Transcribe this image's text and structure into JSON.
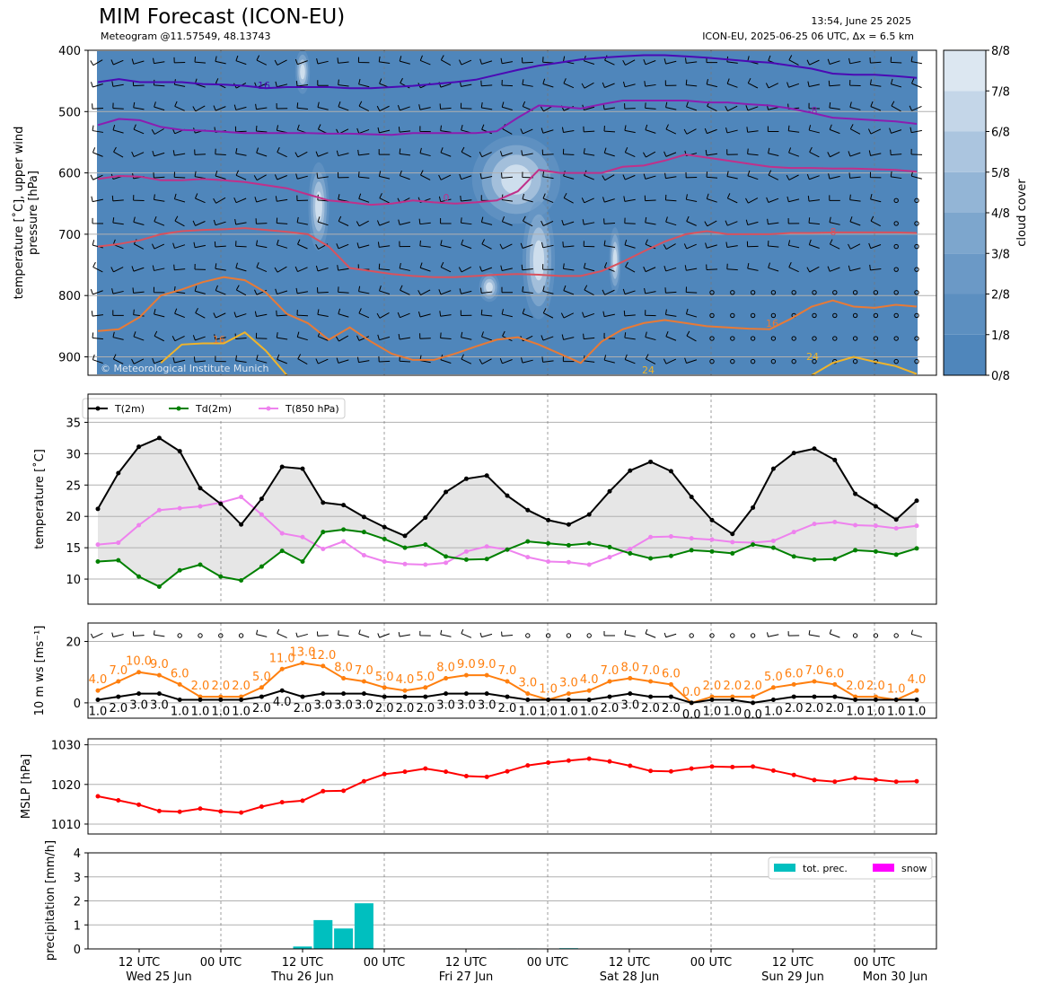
{
  "header": {
    "title": "MIM Forecast (ICON-EU)",
    "subtitle": "Meteogram @11.57549, 48.13743",
    "right_line1": "13:54, June 25 2025",
    "right_line2": "ICON-EU, 2025-06-25 06 UTC, Δx = 6.5 km",
    "copyright": "© Meteorological Institute Munich"
  },
  "x_axis": {
    "tick_labels": [
      "12 UTC",
      "00 UTC",
      "12 UTC",
      "00 UTC",
      "12 UTC",
      "00 UTC",
      "12 UTC",
      "00 UTC",
      "12 UTC",
      "00 UTC"
    ],
    "day_labels": [
      "Wed 25 Jun",
      "Thu 26 Jun",
      "Fri 27 Jun",
      "Sat 28 Jun",
      "Sun 29 Jun",
      "Mon 30 Jun"
    ]
  },
  "chart_data": [
    {
      "type": "heatmap",
      "panel": "upper-air",
      "ylabel": "temperature [˚C], upper wind\npressure [hPa]",
      "yticks": [
        400,
        500,
        600,
        700,
        800,
        900
      ],
      "ylim": [
        930,
        400
      ],
      "colorbar": {
        "label": "cloud cover",
        "ticks": [
          "0/8",
          "1/8",
          "2/8",
          "3/8",
          "4/8",
          "5/8",
          "6/8",
          "7/8",
          "8/8"
        ],
        "colors": [
          "#4f86bb",
          "#5c8fc0",
          "#6b99c6",
          "#7da6cd",
          "#93b5d6",
          "#abc5df",
          "#c4d6e8",
          "#dce7f1",
          "#f3f7fb"
        ]
      },
      "isotherm_labels": [
        "-16",
        "-8",
        "0",
        "8",
        "16",
        "24",
        "16",
        "24"
      ],
      "isotherms": [
        {
          "temp": -16,
          "color": "#4b0ab4",
          "p": [
            452,
            447,
            452,
            452,
            452,
            455,
            456,
            458,
            462,
            460,
            460,
            460,
            462,
            462,
            460,
            458,
            455,
            452,
            448,
            440,
            432,
            425,
            420,
            415,
            412,
            410,
            408,
            408,
            410,
            412,
            415,
            418,
            420,
            425,
            430,
            438,
            440,
            440,
            442,
            445
          ]
        },
        {
          "temp": -8,
          "color": "#8b1db0",
          "p": [
            522,
            512,
            514,
            525,
            530,
            531,
            533,
            535,
            535,
            535,
            535,
            536,
            536,
            537,
            538,
            535,
            535,
            535,
            535,
            532,
            510,
            490,
            492,
            495,
            488,
            482,
            482,
            482,
            482,
            485,
            485,
            488,
            490,
            495,
            502,
            510,
            512,
            514,
            516,
            520
          ]
        },
        {
          "temp": 0,
          "color": "#c0308a",
          "p": [
            610,
            605,
            606,
            612,
            612,
            610,
            612,
            615,
            620,
            625,
            635,
            645,
            648,
            652,
            650,
            645,
            648,
            650,
            648,
            645,
            630,
            595,
            600,
            600,
            600,
            590,
            588,
            580,
            570,
            575,
            580,
            585,
            590,
            592,
            592,
            593,
            593,
            594,
            595,
            598
          ]
        },
        {
          "temp": 8,
          "color": "#d8525e",
          "p": [
            720,
            716,
            710,
            700,
            695,
            693,
            692,
            690,
            693,
            696,
            700,
            720,
            755,
            760,
            765,
            768,
            770,
            770,
            768,
            766,
            765,
            766,
            768,
            768,
            760,
            745,
            728,
            712,
            700,
            695,
            700,
            700,
            700,
            698,
            698,
            697,
            697,
            697,
            697,
            698
          ]
        },
        {
          "temp": 16,
          "color": "#e87a36",
          "p": [
            858,
            855,
            835,
            800,
            790,
            778,
            770,
            775,
            795,
            830,
            845,
            872,
            852,
            875,
            895,
            905,
            905,
            895,
            883,
            872,
            868,
            880,
            895,
            910,
            875,
            855,
            845,
            840,
            845,
            850,
            852,
            854,
            855,
            838,
            818,
            808,
            818,
            820,
            815,
            818
          ]
        },
        {
          "temp": 24,
          "color": "#f0b42a",
          "p": [
            null,
            null,
            null,
            910,
            880,
            878,
            878,
            860,
            890,
            930,
            null,
            null,
            null,
            null,
            null,
            null,
            null,
            null,
            null,
            null,
            null,
            null,
            null,
            null,
            null,
            null,
            null,
            null,
            null,
            null,
            null,
            null,
            null,
            null,
            930,
            910,
            900,
            908,
            915,
            928
          ]
        }
      ]
    },
    {
      "type": "line",
      "panel": "temperature",
      "ylabel": "temperature [˚C]",
      "yticks": [
        10,
        15,
        20,
        25,
        30,
        35
      ],
      "ylim": [
        6,
        39.5
      ],
      "series": [
        {
          "name": "T(2m)",
          "color": "#000000",
          "values": [
            21.2,
            26.9,
            31.1,
            32.5,
            30.4,
            24.5,
            22.0,
            18.7,
            22.8,
            27.9,
            27.6,
            22.2,
            21.8,
            19.9,
            18.3,
            16.9,
            19.8,
            23.9,
            26.0,
            26.5,
            23.3,
            21.0,
            19.4,
            18.7,
            20.3,
            24.0,
            27.3,
            28.7,
            27.2,
            23.1,
            19.4,
            17.2,
            21.4,
            27.6,
            30.1,
            30.8,
            29.0,
            23.6,
            21.6,
            19.5,
            22.5
          ]
        },
        {
          "name": "Td(2m)",
          "color": "#008000",
          "values": [
            12.8,
            13.0,
            10.4,
            8.8,
            11.4,
            12.3,
            10.4,
            9.8,
            12.0,
            14.5,
            12.8,
            17.5,
            17.9,
            17.5,
            16.4,
            15.0,
            15.5,
            13.6,
            13.1,
            13.2,
            14.7,
            16.0,
            15.7,
            15.4,
            15.7,
            15.1,
            14.1,
            13.3,
            13.7,
            14.6,
            14.4,
            14.1,
            15.5,
            15.0,
            13.6,
            13.1,
            13.2,
            14.6,
            14.4,
            13.9,
            14.9
          ]
        },
        {
          "name": "T(850 hPa)",
          "color": "#ee82ee",
          "values": [
            15.5,
            15.8,
            18.6,
            21.0,
            21.3,
            21.6,
            22.2,
            23.1,
            20.3,
            17.3,
            16.7,
            14.8,
            16.0,
            13.8,
            12.8,
            12.4,
            12.3,
            12.6,
            14.4,
            15.2,
            14.7,
            13.5,
            12.8,
            12.7,
            12.3,
            13.5,
            14.8,
            16.7,
            16.8,
            16.5,
            16.3,
            15.9,
            15.8,
            16.1,
            17.5,
            18.8,
            19.1,
            18.6,
            18.5,
            18.1,
            18.5
          ]
        }
      ]
    },
    {
      "type": "line",
      "panel": "wind",
      "ylabel": "10 m ws [ms⁻¹]",
      "yticks": [
        0,
        20
      ],
      "ylim": [
        -5,
        26
      ],
      "series": [
        {
          "name": "gust",
          "color": "#ff7f0e",
          "values": [
            4.0,
            7.0,
            10.0,
            9.0,
            6.0,
            2.0,
            2.0,
            2.0,
            5.0,
            11.0,
            13.0,
            12.0,
            8.0,
            7.0,
            5.0,
            4.0,
            5.0,
            8.0,
            9.0,
            9.0,
            7.0,
            3.0,
            1.0,
            3.0,
            4.0,
            7.0,
            8.0,
            7.0,
            6.0,
            0.0,
            2.0,
            2.0,
            2.0,
            5.0,
            6.0,
            7.0,
            6.0,
            2.0,
            2.0,
            1.0,
            4.0
          ]
        },
        {
          "name": "mean",
          "color": "#000000",
          "values": [
            1.0,
            2.0,
            3.0,
            3.0,
            1.0,
            1.0,
            1.0,
            1.0,
            2.0,
            4.0,
            2.0,
            3.0,
            3.0,
            3.0,
            2.0,
            2.0,
            2.0,
            3.0,
            3.0,
            3.0,
            2.0,
            1.0,
            1.0,
            1.0,
            1.0,
            2.0,
            3.0,
            2.0,
            2.0,
            0.0,
            1.0,
            1.0,
            0.0,
            1.0,
            2.0,
            2.0,
            2.0,
            1.0,
            1.0,
            1.0,
            1.0
          ]
        }
      ]
    },
    {
      "type": "line",
      "panel": "pressure",
      "ylabel": "MSLP [hPa]",
      "yticks": [
        1010,
        1020,
        1030
      ],
      "ylim": [
        1007.5,
        1031.5
      ],
      "series": [
        {
          "name": "MSLP",
          "color": "#ff0000",
          "values": [
            1017.0,
            1016.0,
            1014.9,
            1013.3,
            1013.1,
            1013.9,
            1013.2,
            1012.9,
            1014.4,
            1015.5,
            1015.9,
            1018.3,
            1018.4,
            1020.8,
            1022.6,
            1023.2,
            1024.0,
            1023.2,
            1022.1,
            1021.9,
            1023.3,
            1024.8,
            1025.5,
            1026.0,
            1026.5,
            1025.8,
            1024.7,
            1023.4,
            1023.3,
            1024.0,
            1024.5,
            1024.4,
            1024.5,
            1023.5,
            1022.4,
            1021.1,
            1020.7,
            1021.6,
            1021.2,
            1020.7,
            1020.8
          ]
        }
      ]
    },
    {
      "type": "bar",
      "panel": "precipitation",
      "ylabel": "precipitation [mm/h]",
      "yticks": [
        0,
        1,
        2,
        3,
        4
      ],
      "ylim": [
        0,
        4
      ],
      "legend": [
        "tot. prec.",
        "snow"
      ],
      "legend_colors": [
        "#00bfbf",
        "#ff00ff"
      ],
      "series": [
        {
          "name": "tot. prec.",
          "color": "#00bfbf",
          "values": [
            0,
            0,
            0,
            0,
            0,
            0,
            0,
            0,
            0,
            0,
            0.1,
            1.2,
            0.85,
            1.9,
            0,
            0,
            0,
            0,
            0,
            0,
            0.02,
            0.02,
            0,
            0.03,
            0,
            0,
            0,
            0,
            0,
            0,
            0,
            0,
            0,
            0,
            0,
            0,
            0,
            0,
            0,
            0,
            0
          ]
        },
        {
          "name": "snow",
          "color": "#ff00ff",
          "values": [
            0,
            0,
            0,
            0,
            0,
            0,
            0,
            0,
            0,
            0,
            0,
            0,
            0,
            0,
            0,
            0,
            0,
            0,
            0,
            0,
            0,
            0,
            0,
            0,
            0,
            0,
            0,
            0,
            0,
            0,
            0,
            0,
            0,
            0,
            0,
            0,
            0,
            0,
            0,
            0,
            0
          ]
        }
      ]
    }
  ]
}
